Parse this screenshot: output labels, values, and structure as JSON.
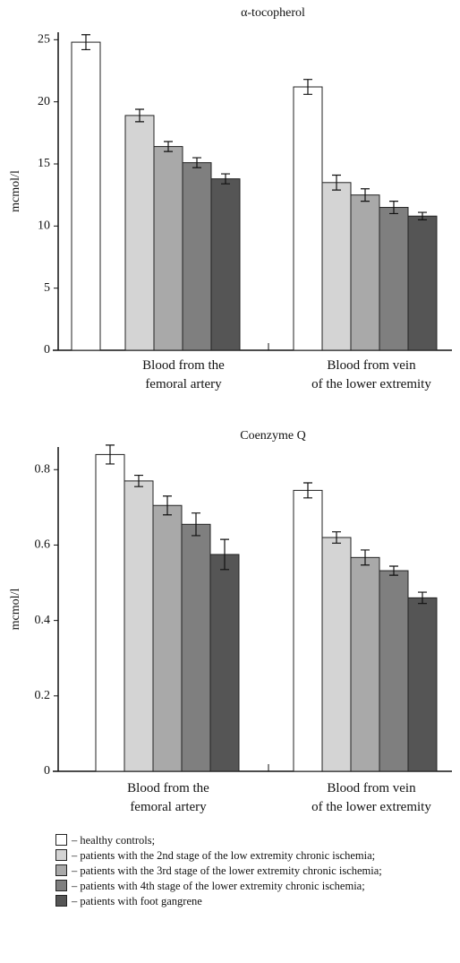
{
  "chart_data": [
    {
      "type": "bar",
      "title": "α-tocopherol",
      "y_label": "mcmol/l",
      "categories": [
        "Blood from the\nfemoral artery",
        "Blood from vein\nof the lower extremity"
      ],
      "ylim": [
        0,
        25.6
      ],
      "yticks": [
        0,
        5,
        10,
        15,
        20,
        25
      ],
      "series": [
        {
          "color": "#ffffff",
          "values": [
            24.8,
            21.2
          ],
          "errors": [
            0.6,
            0.6
          ]
        },
        {
          "color": "#d4d4d4",
          "values": [
            18.9,
            13.5
          ],
          "errors": [
            0.5,
            0.6
          ]
        },
        {
          "color": "#a9a9a9",
          "values": [
            16.4,
            12.5
          ],
          "errors": [
            0.4,
            0.5
          ]
        },
        {
          "color": "#7f7f7f",
          "values": [
            15.1,
            11.5
          ],
          "errors": [
            0.4,
            0.5
          ]
        },
        {
          "color": "#555555",
          "values": [
            13.8,
            10.8
          ],
          "errors": [
            0.4,
            0.3
          ]
        }
      ]
    },
    {
      "type": "bar",
      "title": "Coenzyme Q",
      "y_label": "mcmol/l",
      "categories": [
        "Blood from the\nfemoral artery",
        "Blood from vein\nof the lower extremity"
      ],
      "ylim": [
        0,
        0.86
      ],
      "yticks": [
        0,
        0.2,
        0.4,
        0.6,
        0.8
      ],
      "series": [
        {
          "name": "– healthy controls;",
          "color": "#ffffff",
          "values": [
            0.84,
            0.745
          ],
          "errors": [
            0.025,
            0.02
          ]
        },
        {
          "name": "– patients with the 2nd stage of the low extremity chronic ischemia;",
          "color": "#d4d4d4",
          "values": [
            0.77,
            0.62
          ],
          "errors": [
            0.015,
            0.015
          ]
        },
        {
          "name": "– patients with the 3rd stage of the lower extremity chronic ischemia;",
          "color": "#a9a9a9",
          "values": [
            0.705,
            0.567
          ],
          "errors": [
            0.025,
            0.02
          ]
        },
        {
          "name": "– patients with 4th stage of the lower extremity chronic ischemia;",
          "color": "#7f7f7f",
          "values": [
            0.655,
            0.532
          ],
          "errors": [
            0.03,
            0.012
          ]
        },
        {
          "name": "– patients with foot gangrene",
          "color": "#555555",
          "values": [
            0.575,
            0.46
          ],
          "errors": [
            0.04,
            0.015
          ]
        }
      ]
    }
  ]
}
